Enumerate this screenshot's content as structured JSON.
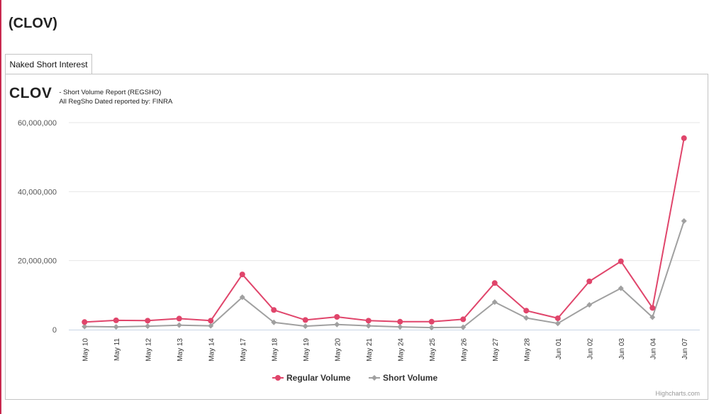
{
  "page": {
    "title": "(CLOV)"
  },
  "tabs": [
    {
      "label": "Naked Short Interest",
      "active": true
    }
  ],
  "chart_header": {
    "ticker": "CLOV",
    "report_line": "- Short Volume Report  (REGSHO)",
    "source_line": "All RegSho Dated reported by: FINRA"
  },
  "credits": "Highcharts.com",
  "chart_data": {
    "type": "line",
    "title": "CLOV",
    "subtitle": "- Short Volume Report  (REGSHO) All RegSho Dated reported by: FINRA",
    "xlabel": "",
    "ylabel": "",
    "categories": [
      "May 10",
      "May 11",
      "May 12",
      "May 13",
      "May 14",
      "May 17",
      "May 18",
      "May 19",
      "May 20",
      "May 21",
      "May 24",
      "May 25",
      "May 26",
      "May 27",
      "May 28",
      "Jun 01",
      "Jun 02",
      "Jun 03",
      "Jun 04",
      "Jun 07"
    ],
    "y_ticks": [
      0,
      20000000,
      40000000,
      60000000
    ],
    "y_tick_labels": [
      "0",
      "20,000,000",
      "40,000,000",
      "60,000,000"
    ],
    "ylim": [
      0,
      60000000
    ],
    "grid": true,
    "legend_position": "bottom-center",
    "series": [
      {
        "name": "Regular Volume",
        "color": "#e0456b",
        "marker": "circle",
        "values": [
          2200000,
          2700000,
          2600000,
          3200000,
          2600000,
          16000000,
          5700000,
          2800000,
          3700000,
          2600000,
          2300000,
          2300000,
          3000000,
          13500000,
          5500000,
          3300000,
          14000000,
          19800000,
          6300000,
          55500000
        ]
      },
      {
        "name": "Short Volume",
        "color": "#a0a0a0",
        "marker": "diamond",
        "values": [
          900000,
          800000,
          1000000,
          1300000,
          1100000,
          9400000,
          2100000,
          1000000,
          1500000,
          1100000,
          800000,
          600000,
          700000,
          8000000,
          3400000,
          1800000,
          7200000,
          12000000,
          3600000,
          31500000
        ]
      }
    ]
  }
}
